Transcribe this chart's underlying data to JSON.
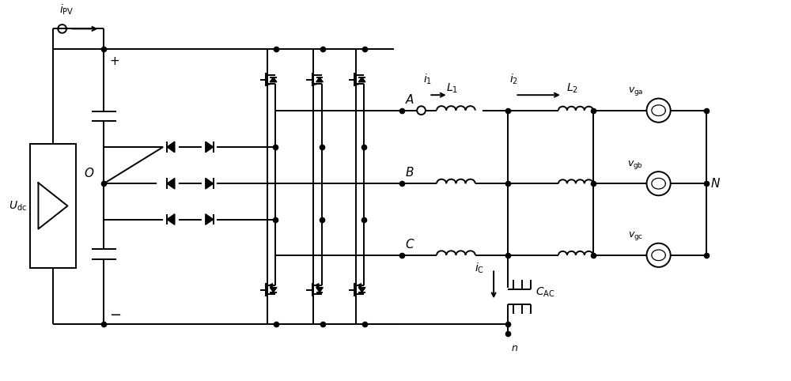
{
  "bg_color": "#ffffff",
  "line_color": "#000000",
  "lw": 1.4,
  "dot_r": 4.5,
  "fig_w": 10.0,
  "fig_h": 4.82,
  "dpi": 100,
  "xmax": 10.0,
  "ymax": 4.82
}
